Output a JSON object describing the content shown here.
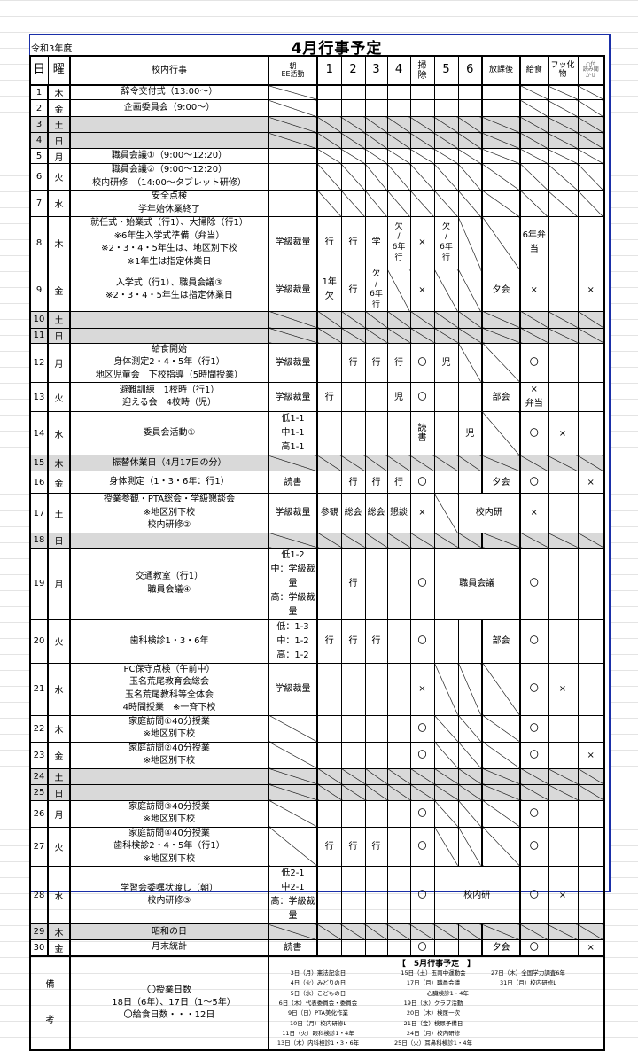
{
  "header": {
    "year": "令和3年度",
    "title": "4月行事予定"
  },
  "columns": [
    "日",
    "曜",
    "校内行事",
    "朝\nEE活動",
    "1",
    "2",
    "3",
    "4",
    "掃\n除",
    "5",
    "6",
    "放課後",
    "給食",
    "フッ化\n物",
    "○付\n読み聞\nかせ"
  ],
  "rows": [
    {
      "day": "1",
      "dow": "木",
      "events": "辞令交付式（13:00〜）",
      "cells": [
        "/",
        "",
        "",
        "",
        "",
        "",
        "",
        "",
        "",
        "/",
        "/",
        "/"
      ]
    },
    {
      "day": "2",
      "dow": "金",
      "events": "企画委員会（9:00〜）",
      "cells": [
        "/",
        "",
        "",
        "",
        "",
        "",
        "",
        "",
        "",
        "/",
        "/",
        "/"
      ]
    },
    {
      "day": "3",
      "dow": "土",
      "events": "",
      "holiday": true
    },
    {
      "day": "4",
      "dow": "日",
      "events": "",
      "holiday": true
    },
    {
      "day": "5",
      "dow": "月",
      "events": "職員会議①（9:00〜12:20）",
      "cells": [
        "",
        "/",
        "/",
        "/",
        "/",
        "/",
        "/",
        "/",
        "/",
        "/",
        "/",
        "/"
      ]
    },
    {
      "day": "6",
      "dow": "火",
      "events": "職員会議②（9:00〜12:20）\n校内研修　（14:00〜タブレット研修）",
      "cells": [
        "",
        "/",
        "/",
        "/",
        "/",
        "/",
        "/",
        "/",
        "/",
        "/",
        "/",
        "/"
      ]
    },
    {
      "day": "7",
      "dow": "水",
      "events": "安全点検\n学年始休業終了",
      "cells": [
        "",
        "/",
        "/",
        "/",
        "/",
        "/",
        "/",
        "/",
        "/",
        "/",
        "/",
        "/"
      ]
    },
    {
      "day": "8",
      "dow": "木",
      "events": "就任式・始業式（行1）、大掃除（行1）\n※6年生入学式準備（弁当）\n※2・3・4・5年生は、地区別下校\n※1年生は指定休業日",
      "cells": [
        "学級裁量",
        "行",
        "行",
        "学",
        "欠\n/\n6年\n行",
        "×",
        "欠\n/\n6年\n行",
        "/",
        "/",
        "6年弁当",
        "",
        ""
      ]
    },
    {
      "day": "9",
      "dow": "金",
      "events": "入学式（行1）、職員会議③\n※2・3・4・5年生は指定休業日",
      "cells": [
        "学級裁量",
        "1年欠",
        "行",
        "欠\n/\n6年\n行",
        "/",
        "×",
        "/",
        "/",
        "夕会",
        "×",
        "",
        "×"
      ]
    },
    {
      "day": "10",
      "dow": "土",
      "events": "",
      "holiday": true
    },
    {
      "day": "11",
      "dow": "日",
      "events": "",
      "holiday": true
    },
    {
      "day": "12",
      "dow": "月",
      "events": "給食開始\n身体測定2・4・5年（行1）\n地区児童会　下校指導（5時間授業）",
      "cells": [
        "学級裁量",
        "",
        "行",
        "行",
        "行",
        "〇",
        "児",
        "/",
        "/",
        "〇",
        "",
        ""
      ]
    },
    {
      "day": "13",
      "dow": "火",
      "events": "避難訓練　1校時（行1）\n迎える会　4校時（児）",
      "cells": [
        "学級裁量",
        "行",
        "",
        "",
        "児",
        "〇",
        "",
        "",
        "部会",
        "×\n弁当",
        "",
        ""
      ]
    },
    {
      "day": "14",
      "dow": "水",
      "events": "委員会活動①",
      "cells": [
        "低1-1\n中1-1\n高1-1",
        "",
        "",
        "",
        "",
        "読\n書",
        "",
        "児",
        "/",
        "〇",
        "×",
        ""
      ]
    },
    {
      "day": "15",
      "dow": "木",
      "events": "振替休業日（4月17日の分）",
      "holiday": true
    },
    {
      "day": "16",
      "dow": "金",
      "events": "身体測定（1・3・6年：行1）",
      "cells": [
        "読書",
        "",
        "行",
        "行",
        "行",
        "〇",
        "",
        "",
        "夕会",
        "〇",
        "",
        "×"
      ]
    },
    {
      "day": "17",
      "dow": "土",
      "events": "授業参観・PTA総会・学級懇談会\n※地区別下校\n校内研修②",
      "cells": [
        "学級裁量",
        "参観",
        "総会",
        "総会",
        "懇談",
        "×",
        "/",
        {
          "t": "校内研",
          "span": 2
        },
        "×",
        "",
        ""
      ]
    },
    {
      "day": "18",
      "dow": "日",
      "events": "",
      "holiday": true
    },
    {
      "day": "19",
      "dow": "月",
      "events": "交通教室（行1）\n職員会議④",
      "cells": [
        "低1-2\n中：学級裁量\n高：学級裁量",
        "",
        "行",
        "",
        "",
        "〇",
        {
          "t": "職員会議",
          "span": 3
        },
        "〇",
        "",
        ""
      ]
    },
    {
      "day": "20",
      "dow": "火",
      "events": "歯科検診1・3・6年",
      "cells": [
        "低：1-3\n中：1-2\n高：1-2",
        "行",
        "行",
        "行",
        "",
        "〇",
        "",
        "",
        "部会",
        "〇",
        "",
        ""
      ]
    },
    {
      "day": "21",
      "dow": "水",
      "events": "PC保守点検（午前中）\n玉名荒尾教育会総会\n玉名荒尾教科等全体会\n4時間授業　※一斉下校",
      "cells": [
        "学級裁量",
        "",
        "",
        "",
        "",
        "×",
        "/",
        "/",
        "/",
        "〇",
        "×",
        ""
      ]
    },
    {
      "day": "22",
      "dow": "木",
      "events": "家庭訪問①40分授業\n※地区別下校",
      "cells": [
        "/",
        "",
        "",
        "",
        "",
        "〇",
        "/",
        "/",
        "/",
        "〇",
        "",
        ""
      ]
    },
    {
      "day": "23",
      "dow": "金",
      "events": "家庭訪問②40分授業\n※地区別下校",
      "cells": [
        "/",
        "",
        "",
        "",
        "",
        "〇",
        "/",
        "/",
        "/",
        "〇",
        "",
        "×"
      ]
    },
    {
      "day": "24",
      "dow": "土",
      "events": "",
      "holiday": true
    },
    {
      "day": "25",
      "dow": "日",
      "events": "",
      "holiday": true
    },
    {
      "day": "26",
      "dow": "月",
      "events": "家庭訪問③40分授業\n※地区別下校",
      "cells": [
        "/",
        "",
        "",
        "",
        "",
        "〇",
        "/",
        "/",
        "/",
        "〇",
        "",
        ""
      ]
    },
    {
      "day": "27",
      "dow": "火",
      "events": "家庭訪問④40分授業\n歯科検診2・4・5年（行1）\n※地区別下校",
      "cells": [
        "/",
        "行",
        "行",
        "行",
        "",
        "〇",
        "/",
        "/",
        "/",
        "〇",
        "",
        ""
      ]
    },
    {
      "day": "28",
      "dow": "水",
      "events": "学習会委嘱状渡し（朝）\n校内研修③",
      "cells": [
        "低2-1\n中2-1\n高：学級裁量",
        "",
        "",
        "",
        "",
        "〇",
        {
          "t": "校内研",
          "span": 3
        },
        "〇",
        "×",
        ""
      ]
    },
    {
      "day": "29",
      "dow": "木",
      "events": "昭和の日",
      "holiday": true
    },
    {
      "day": "30",
      "dow": "金",
      "events": "月末統計",
      "cells": [
        "読書",
        "",
        "",
        "",
        "",
        "〇",
        "",
        "",
        "夕会",
        "〇",
        "",
        "×"
      ]
    }
  ],
  "remarks": {
    "label": "備\n考",
    "text": "〇授業日数\n　18日（6年）、17日（1〜5年）\n〇給食日数・・・12日",
    "may_title": "【　5月行事予定　】",
    "may_columns": [
      "3日（月）憲法記念日\n4日（火）みどりの日\n5日（水）こどもの日\n6日（木）代表委員会・委員会\n9日（日）PTA美化作業\n10日（月）校内研修L\n11日（火）眼科検診1・4年\n13日（木）内科検診1・3・6年",
      "15日（土）玉南中運動会\n17日（月）職員会議\n　　　　　心臓検診1・4年\n19日（水）クラブ活動\n20日（木）検尿一次\n21日（金）検尿予備日\n24日（月）校内研修\n25日（火）耳鼻科検診1・4年",
      "27日（木）全国学力調査6年\n31日（月）校内研修L"
    ]
  }
}
